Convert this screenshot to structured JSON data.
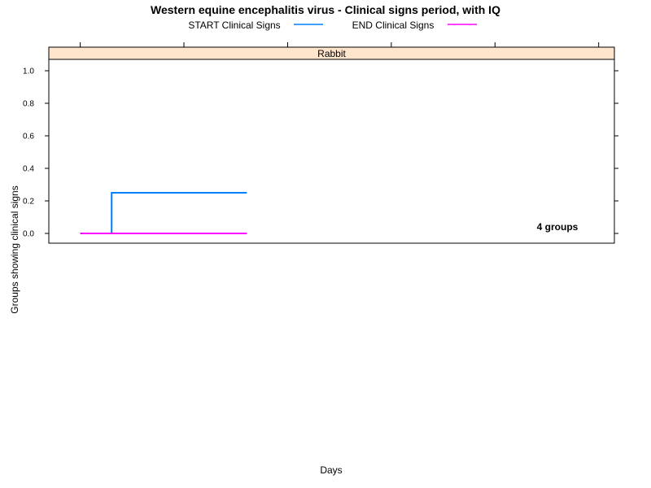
{
  "chart_data": {
    "type": "line",
    "title": "Western equine encephalitis virus - Clinical signs period, with IQ",
    "panel": "Rabbit",
    "xlabel": "Days",
    "ylabel": "Groups showing clinical signs",
    "ylim": [
      -0.06,
      1.07
    ],
    "xlim": [
      0,
      18
    ],
    "yticks": [
      0.0,
      0.2,
      0.4,
      0.6,
      0.8,
      1.0
    ],
    "ytick_labels": [
      "0.0",
      "0.2",
      "0.4",
      "0.6",
      "0.8",
      "1.0"
    ],
    "xticks": [
      1,
      4.3,
      7.6,
      10.9,
      14.2,
      17.5
    ],
    "legend_position": "top",
    "annotation": "4 groups",
    "grid": false,
    "series": [
      {
        "name": "START Clinical Signs",
        "color": "#0080ff",
        "step": true,
        "x": [
          1,
          2,
          2,
          6.3
        ],
        "y": [
          0,
          0,
          0.25,
          0.25
        ]
      },
      {
        "name": "END Clinical Signs",
        "color": "#ff00ff",
        "step": true,
        "x": [
          1,
          6.3
        ],
        "y": [
          0,
          0
        ]
      }
    ]
  }
}
